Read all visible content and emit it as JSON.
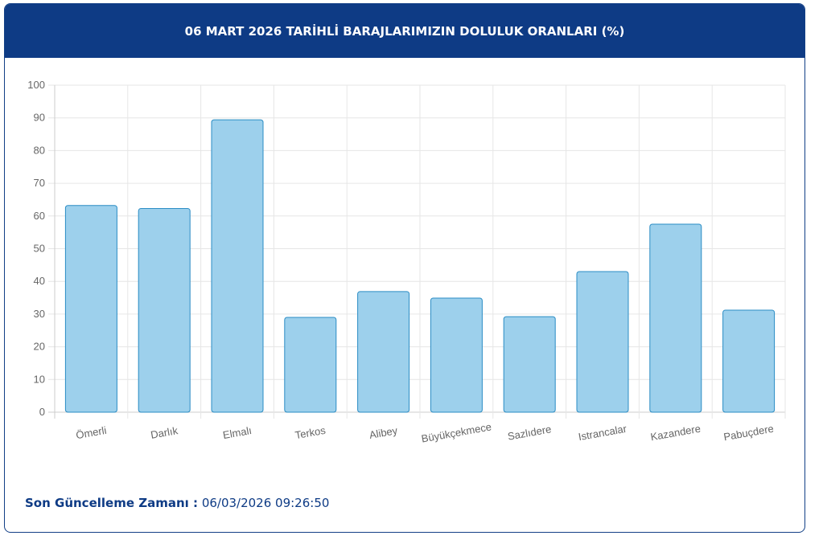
{
  "chart_data": {
    "type": "bar",
    "title": "06 MART 2026 TARİHLİ BARAJLARIMIZIN DOLULUK ORANLARI (%)",
    "categories": [
      "Ömerli",
      "Darlık",
      "Elmalı",
      "Terkos",
      "Alibey",
      "Büyükçekmece",
      "Sazlıdere",
      "Istrancalar",
      "Kazandere",
      "Pabuçdere"
    ],
    "values": [
      63.2,
      62.3,
      89.4,
      29.0,
      36.9,
      34.9,
      29.2,
      43.0,
      57.5,
      31.2
    ],
    "color": "#9dd0ec",
    "border_color": "#2a8cc4",
    "ylim": [
      0,
      100
    ],
    "yticks": [
      0,
      10,
      20,
      30,
      40,
      50,
      60,
      70,
      80,
      90,
      100
    ],
    "grid": true
  },
  "footer": {
    "label": "Son Güncelleme Zamanı :",
    "timestamp": "06/03/2026 09:26:50"
  }
}
